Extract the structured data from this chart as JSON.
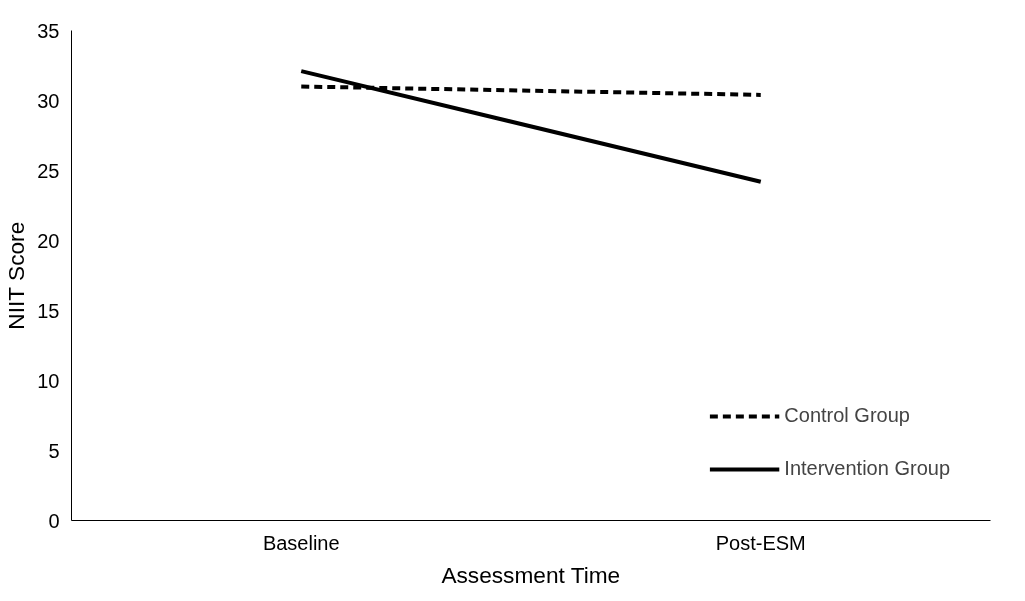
{
  "chart_data": {
    "type": "line",
    "xlabel": "Assessment Time",
    "ylabel": "NIIT Score",
    "categories": [
      "Baseline",
      "Post-ESM"
    ],
    "series": [
      {
        "name": "Control Group",
        "color": "#000000",
        "values": [
          31.0,
          30.4
        ],
        "line_style": "dashed"
      },
      {
        "name": "Intervention Group",
        "color": "#000000",
        "values": [
          32.1,
          24.2
        ],
        "line_style": "solid"
      }
    ],
    "ylim": [
      0,
      35
    ],
    "yticks": [
      0,
      5,
      10,
      15,
      20,
      25,
      30,
      35
    ],
    "grid": false,
    "legend": "bottom right",
    "marker": "none"
  }
}
